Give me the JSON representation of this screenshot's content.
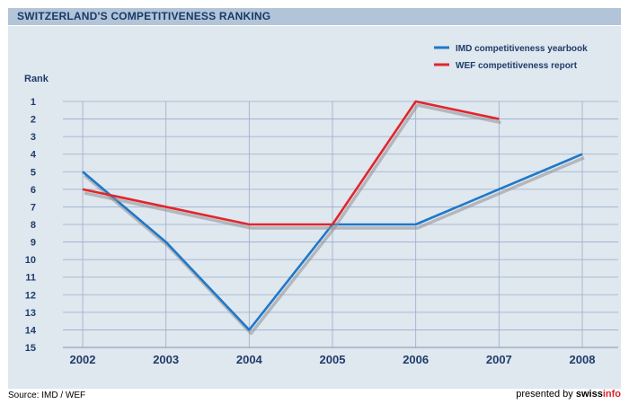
{
  "title": "SWITZERLAND'S COMPETITIVENESS RANKING",
  "footer": {
    "source": "Source: IMD / WEF",
    "presented_by": "presented by ",
    "brand_a": "swiss",
    "brand_b": "info"
  },
  "colors": {
    "imd": "#1f78c8",
    "wef": "#e0262c",
    "header_bg": "#b2c4d8",
    "panel_bg": "#dfe7ef",
    "grid": "#9aaecb",
    "text": "#1f3d6b"
  },
  "chart_data": {
    "type": "line",
    "title": "SWITZERLAND'S COMPETITIVENESS RANKING",
    "ylabel": "Rank",
    "xlabel": "",
    "x": [
      2002,
      2003,
      2004,
      2005,
      2006,
      2007,
      2008
    ],
    "y_ticks": [
      1,
      2,
      3,
      4,
      5,
      6,
      7,
      8,
      9,
      10,
      11,
      12,
      13,
      14,
      15
    ],
    "ylim": [
      1,
      15
    ],
    "y_inverted": true,
    "grid": true,
    "legend_position": "top-right",
    "series": [
      {
        "name": "IMD competitiveness yearbook",
        "color": "#1f78c8",
        "points": [
          [
            2002,
            5
          ],
          [
            2003,
            9
          ],
          [
            2004,
            14
          ],
          [
            2005,
            8
          ],
          [
            2006,
            8
          ],
          [
            2007,
            6
          ],
          [
            2008,
            4
          ]
        ]
      },
      {
        "name": "WEF competitiveness report",
        "color": "#e0262c",
        "points": [
          [
            2002,
            6
          ],
          [
            2003,
            7
          ],
          [
            2004,
            8
          ],
          [
            2005,
            8
          ],
          [
            2006,
            1
          ],
          [
            2007,
            2
          ]
        ]
      }
    ]
  }
}
